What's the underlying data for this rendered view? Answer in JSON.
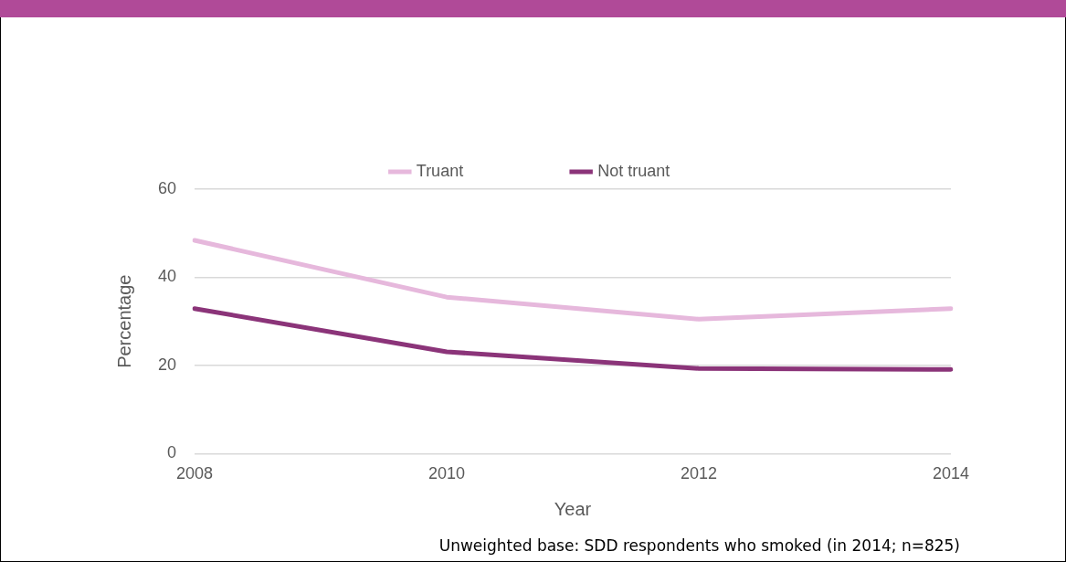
{
  "chart_data": {
    "type": "line",
    "xlabel": "Year",
    "ylabel": "Percentage",
    "categories": [
      "2008",
      "2010",
      "2012",
      "2014"
    ],
    "series": [
      {
        "name": "Truant",
        "color": "#e6b8dc",
        "values": [
          48.4,
          35.5,
          30.5,
          32.9
        ]
      },
      {
        "name": "Not truant",
        "color": "#8b3479",
        "values": [
          32.9,
          23.1,
          19.3,
          19.1
        ]
      }
    ],
    "ylim": [
      0,
      60
    ],
    "yticks": [
      0,
      20,
      40,
      60
    ],
    "grid": "y",
    "legend": "top",
    "marker": "none",
    "line_style": "solid",
    "annotations": [
      "Unweighted base: SDD respondents who smoked (in 2014; n=825)"
    ]
  }
}
